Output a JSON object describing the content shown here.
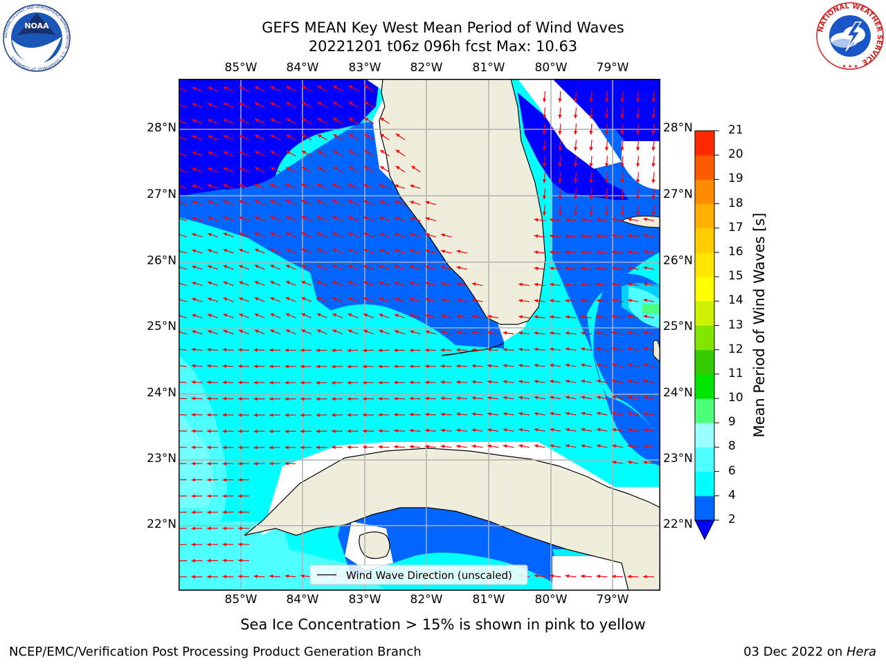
{
  "title": {
    "line1": "GEFS MEAN Key West Mean Period of Wind Waves",
    "line2": "20221201 t06z 096h fcst   Max: 10.63"
  },
  "map": {
    "lon_labels": [
      "85°W",
      "84°W",
      "83°W",
      "82°W",
      "81°W",
      "80°W",
      "79°W"
    ],
    "lat_labels": [
      "28°N",
      "27°N",
      "26°N",
      "25°N",
      "24°N",
      "23°N",
      "22°N"
    ],
    "legend_label": "Wind Wave Direction (unscaled)",
    "arrow_color": "#ff0000",
    "land_color": "#efeddc"
  },
  "colorbar": {
    "label": "Mean Period of Wind Waves [s]",
    "ticks": [
      "2",
      "4",
      "6",
      "8",
      "9",
      "10",
      "11",
      "12",
      "13",
      "14",
      "15",
      "16",
      "17",
      "18",
      "19",
      "20",
      "21"
    ],
    "colors": [
      "#0000ff",
      "#0066ff",
      "#00ffff",
      "#4dffff",
      "#99ffff",
      "#4dff7a",
      "#00e600",
      "#33cc00",
      "#80e600",
      "#ccf200",
      "#ffff00",
      "#ffe600",
      "#ffcc00",
      "#ffb000",
      "#ff8c00",
      "#ff5a00",
      "#ff2a00",
      "#ff0000"
    ]
  },
  "subtitle": "Sea Ice Concentration > 15% is shown in pink to yellow",
  "footer": {
    "left": "NCEP/EMC/Verification Post Processing Product Generation Branch",
    "right_date": "03 Dec 2022 on ",
    "right_host": "Hera"
  },
  "logos": {
    "noaa_text": "NOAA",
    "noaa_ring": "NATIONAL OCEANIC AND ATMOSPHERIC ADMINISTRATION · U.S. DEPARTMENT OF COMMERCE",
    "nws_ring": "NATIONAL WEATHER SERVICE"
  }
}
